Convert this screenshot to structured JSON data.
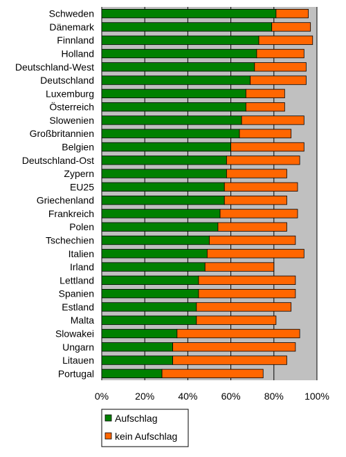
{
  "chart_data": {
    "type": "bar",
    "orientation": "horizontal",
    "stacked": true,
    "categories": [
      "Schweden",
      "Dänemark",
      "Finnland",
      "Holland",
      "Deutschland-West",
      "Deutschland",
      "Luxemburg",
      "Österreich",
      "Slowenien",
      "Großbritannien",
      "Belgien",
      "Deutschland-Ost",
      "Zypern",
      "EU25",
      "Griechenland",
      "Frankreich",
      "Polen",
      "Tschechien",
      "Italien",
      "Irland",
      "Lettland",
      "Spanien",
      "Estland",
      "Malta",
      "Slowakei",
      "Ungarn",
      "Litauen",
      "Portugal"
    ],
    "series": [
      {
        "name": "Aufschlag",
        "color": "#008000",
        "values": [
          81,
          79,
          73,
          72,
          71,
          69,
          67,
          67,
          65,
          64,
          60,
          58,
          58,
          57,
          57,
          55,
          54,
          50,
          49,
          48,
          45,
          45,
          44,
          44,
          35,
          33,
          33,
          28
        ]
      },
      {
        "name": "kein Aufschlag",
        "color": "#ff6600",
        "values": [
          15,
          18,
          25,
          22,
          24,
          26,
          18,
          18,
          29,
          24,
          34,
          34,
          28,
          34,
          29,
          36,
          32,
          40,
          45,
          32,
          45,
          45,
          44,
          37,
          57,
          57,
          53,
          47
        ]
      }
    ],
    "xlim": [
      0,
      100
    ],
    "x_ticks": [
      "0%",
      "20%",
      "40%",
      "60%",
      "80%",
      "100%"
    ],
    "grid": true,
    "plot_background": "#c0c0c0",
    "legend_position": "bottom-left"
  }
}
